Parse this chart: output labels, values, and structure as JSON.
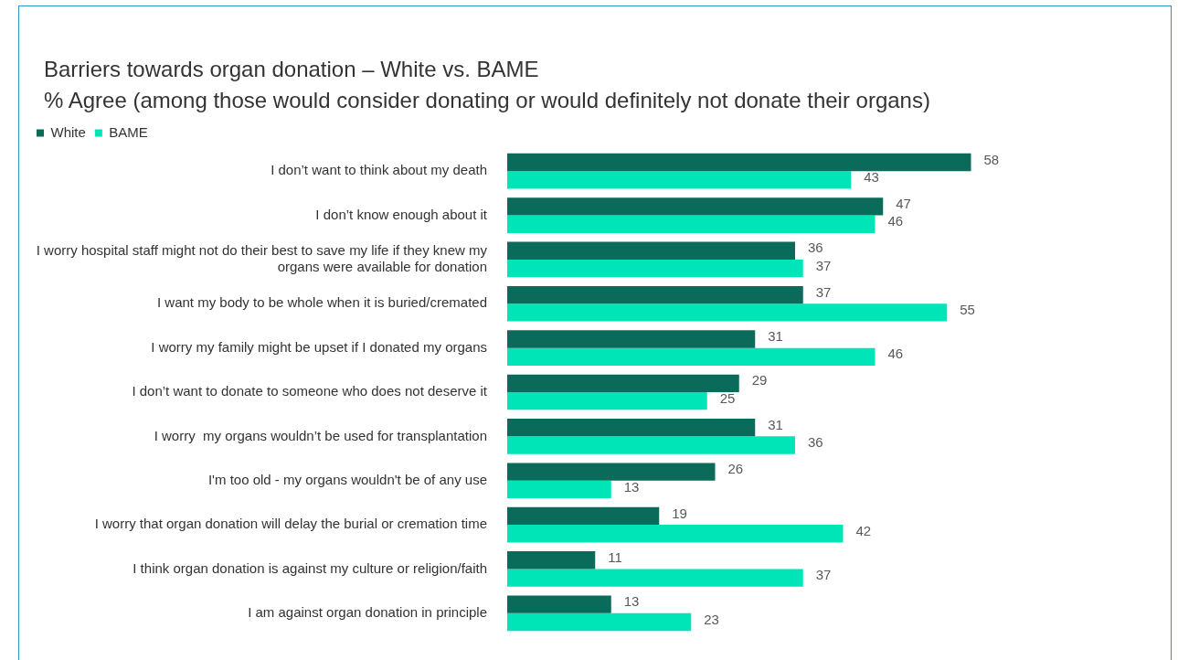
{
  "chart_data": {
    "type": "bar",
    "orientation": "horizontal",
    "title": "Barriers towards organ donation – White vs. BAME",
    "subtitle": "% Agree (among those would consider donating or would definitely not donate their organs)",
    "categories": [
      "I don’t want to think about my death",
      "I don’t know enough about it",
      "I worry hospital staff might not do their best to save my life if they knew my organs were available for donation",
      "I want my body to be whole when it is buried/cremated",
      "I worry my family might be upset if I donated my organs",
      "I don’t want to donate to someone who does not deserve it",
      "I worry  my organs wouldn’t be used for transplantation",
      "I'm too old - my organs wouldn't be of any use",
      "I worry that organ donation will delay the burial or cremation time",
      "I think organ donation is against my culture or religion/faith",
      "I am against organ donation in principle"
    ],
    "series": [
      {
        "name": "White",
        "color": "#0b6b5a",
        "values": [
          58,
          47,
          36,
          37,
          31,
          29,
          31,
          26,
          19,
          11,
          13
        ]
      },
      {
        "name": "BAME",
        "color": "#00e5b8",
        "values": [
          43,
          46,
          37,
          55,
          46,
          25,
          36,
          13,
          42,
          37,
          23
        ]
      }
    ],
    "tick_labels": "y",
    "data_labels": true,
    "legend": "top left"
  }
}
